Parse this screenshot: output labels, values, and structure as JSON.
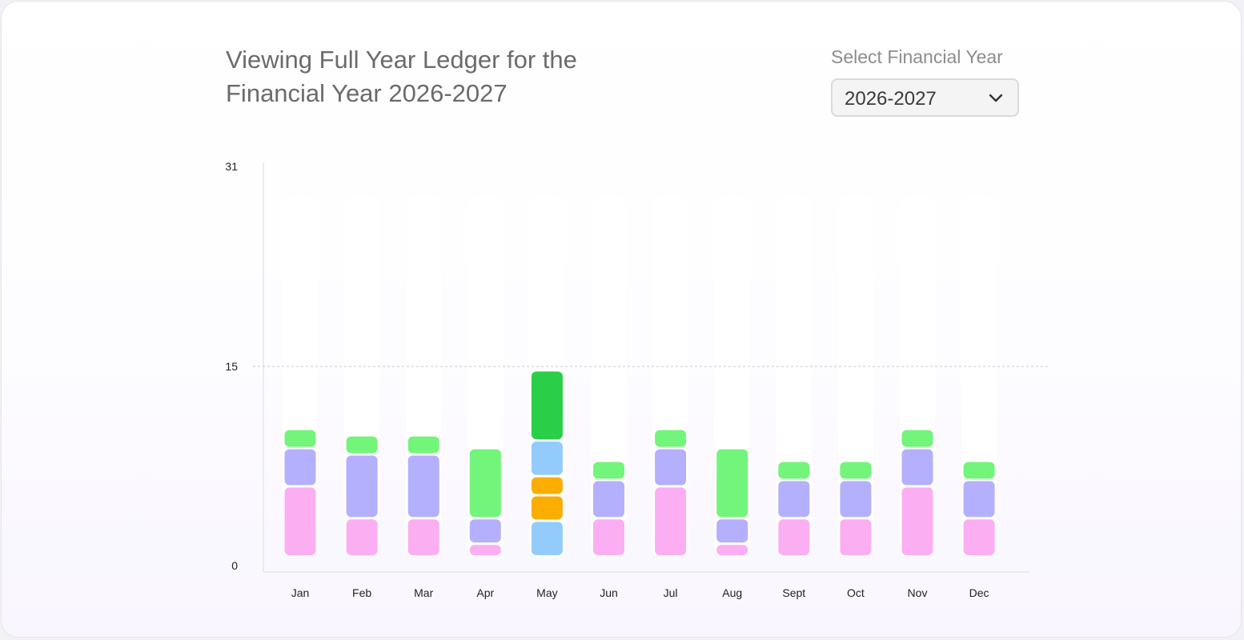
{
  "header": {
    "title": "Viewing Full Year Ledger for the Financial Year 2026-2027",
    "select_label": "Select Financial Year",
    "selected_year": "2026-2027",
    "chevron_icon": "chevron-down-icon"
  },
  "colors": {
    "pink": "#fcaef3",
    "purple": "#b4b0fd",
    "green": "#73f47a",
    "dark_green": "#2bcf47",
    "light_blue": "#93ccfc",
    "orange": "#fbad02",
    "track": "#ffffff",
    "axis": "#e2e2e2",
    "grid": "#c9c9c9"
  },
  "chart_data": {
    "type": "bar",
    "stacked": true,
    "categories": [
      "Jan",
      "Feb",
      "Mar",
      "Apr",
      "May",
      "Jun",
      "Jul",
      "Aug",
      "Sept",
      "Oct",
      "Nov",
      "Dec"
    ],
    "yticks": [
      0,
      15,
      31
    ],
    "ylim": [
      0,
      31
    ],
    "grid_lines": [
      15
    ],
    "stacks": [
      [
        {
          "color": "pink",
          "value": 5.5
        },
        {
          "color": "purple",
          "value": 3
        },
        {
          "color": "green",
          "value": 1.5
        }
      ],
      [
        {
          "color": "pink",
          "value": 3
        },
        {
          "color": "purple",
          "value": 5
        },
        {
          "color": "green",
          "value": 1.5
        }
      ],
      [
        {
          "color": "pink",
          "value": 3
        },
        {
          "color": "purple",
          "value": 5
        },
        {
          "color": "green",
          "value": 1.5
        }
      ],
      [
        {
          "color": "pink",
          "value": 1
        },
        {
          "color": "purple",
          "value": 2
        },
        {
          "color": "green",
          "value": 5.5
        }
      ],
      [
        {
          "color": "light_blue",
          "value": 2.8
        },
        {
          "color": "orange",
          "value": 2
        },
        {
          "color": "orange",
          "value": 1.5
        },
        {
          "color": "light_blue",
          "value": 2.8
        },
        {
          "color": "dark_green",
          "value": 5.5
        }
      ],
      [
        {
          "color": "pink",
          "value": 3
        },
        {
          "color": "purple",
          "value": 3
        },
        {
          "color": "green",
          "value": 1.5
        }
      ],
      [
        {
          "color": "pink",
          "value": 5.5
        },
        {
          "color": "purple",
          "value": 3
        },
        {
          "color": "green",
          "value": 1.5
        }
      ],
      [
        {
          "color": "pink",
          "value": 1
        },
        {
          "color": "purple",
          "value": 2
        },
        {
          "color": "green",
          "value": 5.5
        }
      ],
      [
        {
          "color": "pink",
          "value": 3
        },
        {
          "color": "purple",
          "value": 3
        },
        {
          "color": "green",
          "value": 1.5
        }
      ],
      [
        {
          "color": "pink",
          "value": 3
        },
        {
          "color": "purple",
          "value": 3
        },
        {
          "color": "green",
          "value": 1.5
        }
      ],
      [
        {
          "color": "pink",
          "value": 5.5
        },
        {
          "color": "purple",
          "value": 3
        },
        {
          "color": "green",
          "value": 1.5
        }
      ],
      [
        {
          "color": "pink",
          "value": 3
        },
        {
          "color": "purple",
          "value": 3
        },
        {
          "color": "green",
          "value": 1.5
        }
      ]
    ]
  }
}
